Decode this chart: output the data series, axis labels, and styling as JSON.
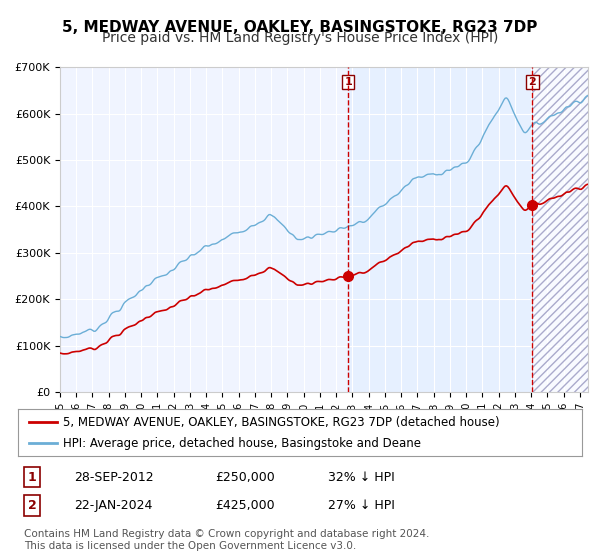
{
  "title": "5, MEDWAY AVENUE, OAKLEY, BASINGSTOKE, RG23 7DP",
  "subtitle": "Price paid vs. HM Land Registry's House Price Index (HPI)",
  "legend_line1": "5, MEDWAY AVENUE, OAKLEY, BASINGSTOKE, RG23 7DP (detached house)",
  "legend_line2": "HPI: Average price, detached house, Basingstoke and Deane",
  "transaction1_label": "1",
  "transaction1_date": "28-SEP-2012",
  "transaction1_price": "£250,000",
  "transaction1_hpi": "32% ↓ HPI",
  "transaction2_label": "2",
  "transaction2_date": "22-JAN-2024",
  "transaction2_price": "£425,000",
  "transaction2_hpi": "27% ↓ HPI",
  "copyright": "Contains HM Land Registry data © Crown copyright and database right 2024.\nThis data is licensed under the Open Government Licence v3.0.",
  "hpi_color": "#6baed6",
  "price_color": "#cc0000",
  "marker_color": "#cc0000",
  "vline_color": "#cc0000",
  "background_fill_color": "#ddeeff",
  "hatch_color": "#aaaacc",
  "ylim": [
    0,
    700000
  ],
  "xlim_start": 1995.0,
  "xlim_end": 2027.5,
  "transaction1_x": 2012.75,
  "transaction2_x": 2024.08,
  "title_fontsize": 11,
  "subtitle_fontsize": 10,
  "axis_label_fontsize": 9,
  "legend_fontsize": 8.5,
  "copyright_fontsize": 7.5
}
